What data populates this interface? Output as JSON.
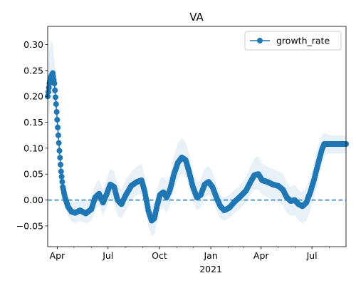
{
  "chart_data": {
    "type": "line",
    "title": "VA",
    "xlabel": "",
    "ylabel": "",
    "x_ticks": [
      {
        "date": "2020-04-01",
        "label": "Apr"
      },
      {
        "date": "2020-07-01",
        "label": "Jul"
      },
      {
        "date": "2020-10-01",
        "label": "Oct"
      },
      {
        "date": "2021-01-01",
        "label": "Jan"
      },
      {
        "date": "2021-04-01",
        "label": "Apr"
      },
      {
        "date": "2021-07-01",
        "label": "Jul"
      }
    ],
    "x_year_label": {
      "date": "2021-01-01",
      "label": "2021"
    },
    "xlim": [
      "2020-03-15",
      "2021-08-31"
    ],
    "ylim": [
      -0.09,
      0.335
    ],
    "y_ticks": [
      -0.05,
      0.0,
      0.05,
      0.1,
      0.15,
      0.2,
      0.25,
      0.3
    ],
    "y_tick_labels": [
      "−0.05",
      "0.00",
      "0.05",
      "0.10",
      "0.15",
      "0.20",
      "0.25",
      "0.30"
    ],
    "reference_line": {
      "y": 0.0,
      "style": "dashed",
      "color": "#1f77b4"
    },
    "legend": {
      "placement": "top-right"
    },
    "grid": false,
    "series": [
      {
        "name": "growth_rate",
        "color": "#1f77b4",
        "marker": "circle",
        "band_color": "#1f77b4",
        "band_opacity": 0.1,
        "points": [
          {
            "x": "2020-03-15",
            "y": 0.2,
            "lo": 0.16,
            "hi": 0.25
          },
          {
            "x": "2020-03-18",
            "y": 0.225,
            "lo": 0.18,
            "hi": 0.29
          },
          {
            "x": "2020-03-21",
            "y": 0.238,
            "lo": 0.19,
            "hi": 0.31
          },
          {
            "x": "2020-03-24",
            "y": 0.245,
            "lo": 0.2,
            "hi": 0.3
          },
          {
            "x": "2020-03-27",
            "y": 0.225,
            "lo": 0.18,
            "hi": 0.27
          },
          {
            "x": "2020-03-30",
            "y": 0.185,
            "lo": 0.15,
            "hi": 0.22
          },
          {
            "x": "2020-04-02",
            "y": 0.14,
            "lo": 0.11,
            "hi": 0.17
          },
          {
            "x": "2020-04-05",
            "y": 0.095,
            "lo": 0.07,
            "hi": 0.12
          },
          {
            "x": "2020-04-08",
            "y": 0.055,
            "lo": 0.035,
            "hi": 0.08
          },
          {
            "x": "2020-04-11",
            "y": 0.025,
            "lo": 0.005,
            "hi": 0.05
          },
          {
            "x": "2020-04-15",
            "y": 0.005,
            "lo": -0.015,
            "hi": 0.03
          },
          {
            "x": "2020-04-20",
            "y": -0.012,
            "lo": -0.03,
            "hi": 0.01
          },
          {
            "x": "2020-04-26",
            "y": -0.022,
            "lo": -0.04,
            "hi": 0.0
          },
          {
            "x": "2020-05-03",
            "y": -0.025,
            "lo": -0.045,
            "hi": -0.005
          },
          {
            "x": "2020-05-12",
            "y": -0.02,
            "lo": -0.04,
            "hi": 0.0
          },
          {
            "x": "2020-05-22",
            "y": -0.026,
            "lo": -0.045,
            "hi": -0.005
          },
          {
            "x": "2020-06-01",
            "y": -0.018,
            "lo": -0.04,
            "hi": 0.005
          },
          {
            "x": "2020-06-08",
            "y": 0.005,
            "lo": -0.02,
            "hi": 0.03
          },
          {
            "x": "2020-06-15",
            "y": 0.012,
            "lo": -0.01,
            "hi": 0.04
          },
          {
            "x": "2020-06-22",
            "y": -0.005,
            "lo": -0.03,
            "hi": 0.02
          },
          {
            "x": "2020-06-28",
            "y": 0.01,
            "lo": -0.015,
            "hi": 0.04
          },
          {
            "x": "2020-07-05",
            "y": 0.03,
            "lo": 0.005,
            "hi": 0.06
          },
          {
            "x": "2020-07-12",
            "y": 0.025,
            "lo": -0.005,
            "hi": 0.055
          },
          {
            "x": "2020-07-18",
            "y": 0.0,
            "lo": -0.03,
            "hi": 0.03
          },
          {
            "x": "2020-07-25",
            "y": -0.008,
            "lo": -0.035,
            "hi": 0.02
          },
          {
            "x": "2020-08-02",
            "y": 0.01,
            "lo": -0.02,
            "hi": 0.04
          },
          {
            "x": "2020-08-12",
            "y": 0.028,
            "lo": 0.0,
            "hi": 0.055
          },
          {
            "x": "2020-08-22",
            "y": 0.035,
            "lo": 0.01,
            "hi": 0.065
          },
          {
            "x": "2020-08-30",
            "y": 0.038,
            "lo": 0.01,
            "hi": 0.07
          },
          {
            "x": "2020-09-05",
            "y": 0.015,
            "lo": -0.015,
            "hi": 0.045
          },
          {
            "x": "2020-09-11",
            "y": -0.02,
            "lo": -0.05,
            "hi": 0.01
          },
          {
            "x": "2020-09-17",
            "y": -0.04,
            "lo": -0.07,
            "hi": -0.01
          },
          {
            "x": "2020-09-22",
            "y": -0.035,
            "lo": -0.065,
            "hi": -0.005
          },
          {
            "x": "2020-09-27",
            "y": -0.01,
            "lo": -0.04,
            "hi": 0.02
          },
          {
            "x": "2020-10-02",
            "y": 0.01,
            "lo": -0.02,
            "hi": 0.04
          },
          {
            "x": "2020-10-08",
            "y": 0.015,
            "lo": -0.015,
            "hi": 0.045
          },
          {
            "x": "2020-10-14",
            "y": 0.005,
            "lo": -0.025,
            "hi": 0.035
          },
          {
            "x": "2020-10-20",
            "y": 0.02,
            "lo": -0.01,
            "hi": 0.05
          },
          {
            "x": "2020-10-27",
            "y": 0.05,
            "lo": 0.02,
            "hi": 0.085
          },
          {
            "x": "2020-11-03",
            "y": 0.072,
            "lo": 0.04,
            "hi": 0.11
          },
          {
            "x": "2020-11-10",
            "y": 0.082,
            "lo": 0.05,
            "hi": 0.12
          },
          {
            "x": "2020-11-17",
            "y": 0.077,
            "lo": 0.045,
            "hi": 0.11
          },
          {
            "x": "2020-11-23",
            "y": 0.055,
            "lo": 0.025,
            "hi": 0.09
          },
          {
            "x": "2020-11-30",
            "y": 0.025,
            "lo": -0.005,
            "hi": 0.055
          },
          {
            "x": "2020-12-07",
            "y": 0.005,
            "lo": -0.02,
            "hi": 0.035
          },
          {
            "x": "2020-12-14",
            "y": 0.01,
            "lo": -0.015,
            "hi": 0.04
          },
          {
            "x": "2020-12-21",
            "y": 0.03,
            "lo": 0.005,
            "hi": 0.06
          },
          {
            "x": "2020-12-28",
            "y": 0.035,
            "lo": 0.01,
            "hi": 0.065
          },
          {
            "x": "2021-01-04",
            "y": 0.025,
            "lo": 0.0,
            "hi": 0.055
          },
          {
            "x": "2021-01-11",
            "y": 0.005,
            "lo": -0.02,
            "hi": 0.03
          },
          {
            "x": "2021-01-18",
            "y": -0.012,
            "lo": -0.035,
            "hi": 0.01
          },
          {
            "x": "2021-01-25",
            "y": -0.02,
            "lo": -0.04,
            "hi": 0.005
          },
          {
            "x": "2021-02-03",
            "y": -0.015,
            "lo": -0.035,
            "hi": 0.01
          },
          {
            "x": "2021-02-13",
            "y": -0.003,
            "lo": -0.025,
            "hi": 0.02
          },
          {
            "x": "2021-02-24",
            "y": 0.008,
            "lo": -0.015,
            "hi": 0.03
          },
          {
            "x": "2021-03-05",
            "y": 0.018,
            "lo": -0.005,
            "hi": 0.045
          },
          {
            "x": "2021-03-13",
            "y": 0.035,
            "lo": 0.01,
            "hi": 0.065
          },
          {
            "x": "2021-03-20",
            "y": 0.048,
            "lo": 0.02,
            "hi": 0.08
          },
          {
            "x": "2021-03-27",
            "y": 0.05,
            "lo": 0.02,
            "hi": 0.085
          },
          {
            "x": "2021-04-03",
            "y": 0.038,
            "lo": 0.01,
            "hi": 0.07
          },
          {
            "x": "2021-04-12",
            "y": 0.035,
            "lo": 0.005,
            "hi": 0.065
          },
          {
            "x": "2021-04-22",
            "y": 0.03,
            "lo": 0.0,
            "hi": 0.06
          },
          {
            "x": "2021-05-02",
            "y": 0.027,
            "lo": -0.005,
            "hi": 0.055
          },
          {
            "x": "2021-05-10",
            "y": 0.02,
            "lo": -0.01,
            "hi": 0.05
          },
          {
            "x": "2021-05-17",
            "y": 0.005,
            "lo": -0.025,
            "hi": 0.035
          },
          {
            "x": "2021-05-24",
            "y": -0.002,
            "lo": -0.03,
            "hi": 0.025
          },
          {
            "x": "2021-05-31",
            "y": 0.0,
            "lo": -0.03,
            "hi": 0.03
          },
          {
            "x": "2021-06-07",
            "y": -0.008,
            "lo": -0.04,
            "hi": 0.02
          },
          {
            "x": "2021-06-14",
            "y": -0.012,
            "lo": -0.045,
            "hi": 0.015
          },
          {
            "x": "2021-06-21",
            "y": -0.005,
            "lo": -0.04,
            "hi": 0.025
          },
          {
            "x": "2021-06-28",
            "y": 0.015,
            "lo": -0.02,
            "hi": 0.045
          },
          {
            "x": "2021-07-05",
            "y": 0.04,
            "lo": 0.005,
            "hi": 0.075
          },
          {
            "x": "2021-07-12",
            "y": 0.07,
            "lo": 0.035,
            "hi": 0.105
          },
          {
            "x": "2021-07-19",
            "y": 0.098,
            "lo": 0.07,
            "hi": 0.125
          },
          {
            "x": "2021-07-23",
            "y": 0.108,
            "lo": 0.085,
            "hi": 0.13
          },
          {
            "x": "2021-08-01",
            "y": 0.108,
            "lo": 0.09,
            "hi": 0.125
          },
          {
            "x": "2021-08-15",
            "y": 0.108,
            "lo": 0.09,
            "hi": 0.125
          },
          {
            "x": "2021-08-31",
            "y": 0.108,
            "lo": 0.09,
            "hi": 0.125
          }
        ]
      }
    ]
  }
}
